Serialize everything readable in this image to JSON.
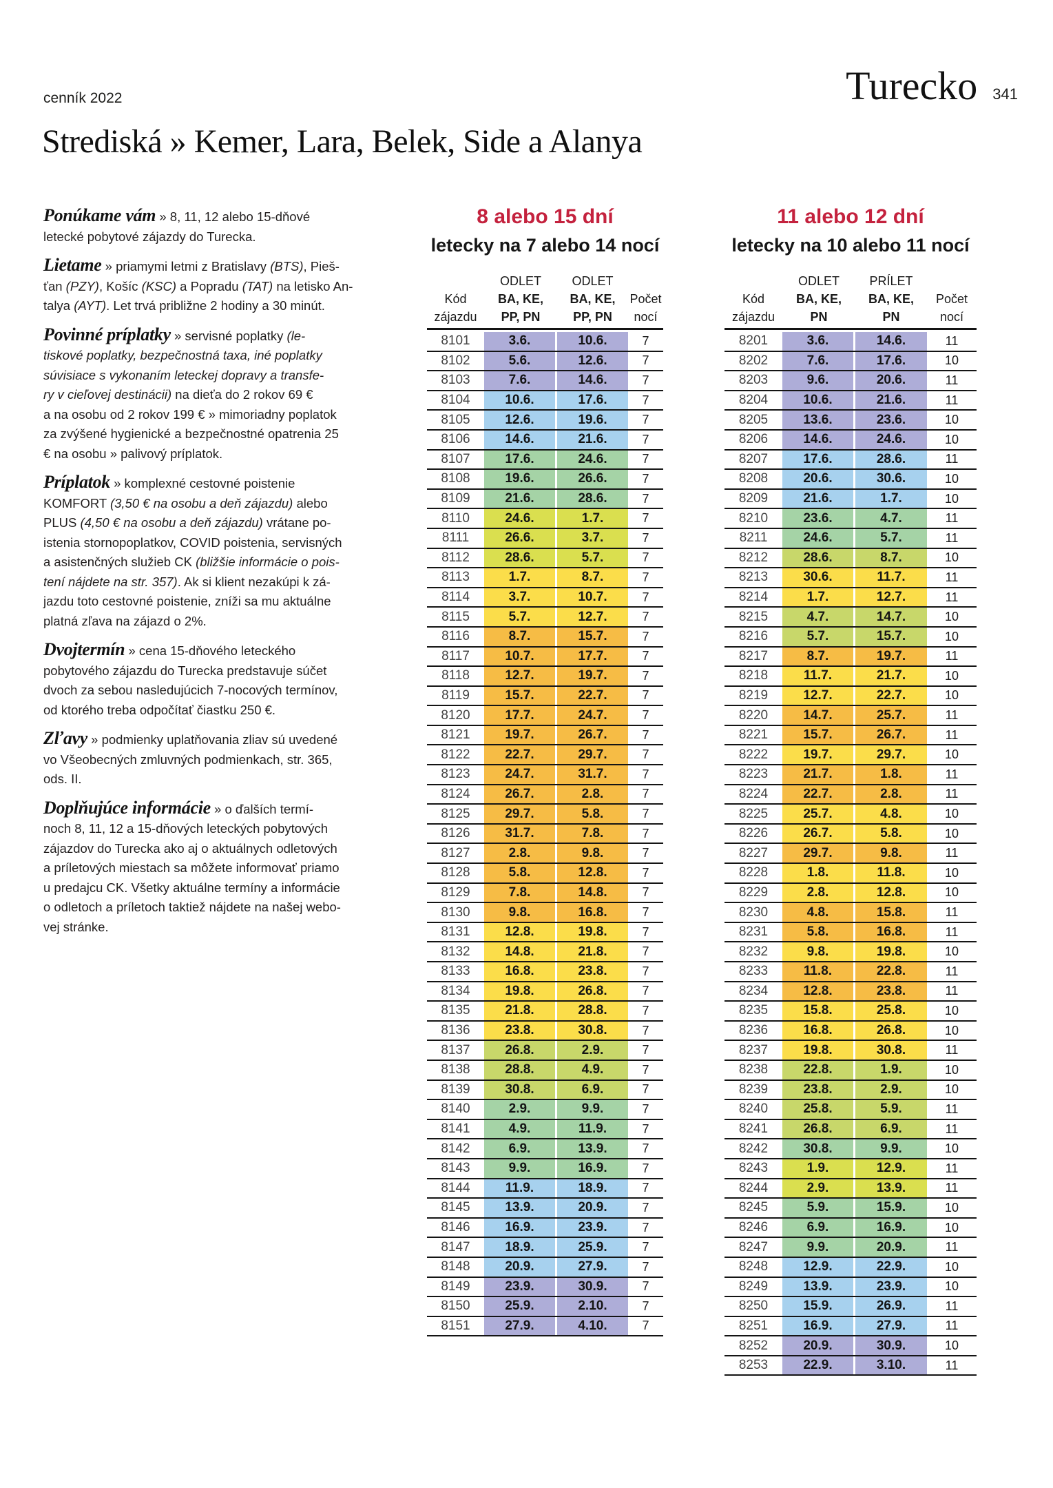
{
  "page": {
    "catalog_label": "cenník 2022",
    "country_title": "Turecko",
    "page_number": "341",
    "heading": "Strediská » Kemer, Lara, Belek, Side a Alanya"
  },
  "colors": {
    "accent_red": "#c4223e",
    "bands": {
      "purple": "#aeadd8",
      "blue": "#a7d1ee",
      "green": "#a5d3a6",
      "lime": "#dadf4f",
      "olive": "#c8d76a",
      "yellow": "#fbdd4a",
      "orange": "#f6bc45"
    }
  },
  "left_column": {
    "paragraphs": [
      {
        "lead": "Ponúkame vám",
        "segments": [
          {
            "text": " » 8, 11, 12 alebo 15-dňové\nletecké pobytové zájazdy do Turecka."
          }
        ]
      },
      {
        "lead": "Lietame",
        "segments": [
          {
            "text": " » priamymi letmi z Bratislavy "
          },
          {
            "text": "(BTS)",
            "italic": true
          },
          {
            "text": ", Pieš-\nťan "
          },
          {
            "text": "(PZY)",
            "italic": true
          },
          {
            "text": ", Košíc "
          },
          {
            "text": "(KSC)",
            "italic": true
          },
          {
            "text": " a Popradu "
          },
          {
            "text": "(TAT)",
            "italic": true
          },
          {
            "text": " na letisko An-\ntalya "
          },
          {
            "text": "(AYT)",
            "italic": true
          },
          {
            "text": ". Let trvá približne 2 hodiny a 30 minút."
          }
        ]
      },
      {
        "lead": "Povinné príplatky",
        "segments": [
          {
            "text": " » servisné poplatky "
          },
          {
            "text": "(le-\ntiskové poplatky, bezpečnostná taxa, iné poplatky\nsúvisiace s vykonaním leteckej dopravy a transfe-\nry v cieľovej destinácii)",
            "italic": true
          },
          {
            "text": " na dieťa do 2 rokov 69 €\na na osobu od 2 rokov 199 € » mimoriadny poplatok\nza zvýšené hygienické a bezpečnostné opatrenia 25\n€ na osobu » palivový príplatok."
          }
        ]
      },
      {
        "lead": "Príplatok",
        "segments": [
          {
            "text": " » komplexné cestovné poistenie\nKOMFORT "
          },
          {
            "text": "(3,50 € na osobu a deň zájazdu)",
            "italic": true
          },
          {
            "text": " alebo\nPLUS "
          },
          {
            "text": "(4,50 € na osobu a deň zájazdu)",
            "italic": true
          },
          {
            "text": " vrátane po-\nistenia stornopoplatkov, COVID poistenia, servisných\na asistenčných služieb CK "
          },
          {
            "text": "(bližšie informácie o pois-\ntení nájdete na str. 357)",
            "italic": true
          },
          {
            "text": ". Ak si klient nezakúpi k zá-\njazdu toto cestovné poistenie, zníži sa mu aktuálne\nplatná zľava na zájazd o 2%."
          }
        ]
      },
      {
        "lead": "Dvojtermín",
        "segments": [
          {
            "text": " » cena 15-dňového leteckého\npobytového zájazdu do Turecka predstavuje súčet\ndvoch za sebou nasledujúcich 7-nocových termínov,\nod ktorého treba odpočítať čiastku 250 €."
          }
        ]
      },
      {
        "lead": "Zľavy",
        "segments": [
          {
            "text": " » podmienky uplatňovania zliav sú uvedené\nvo Všeobecných zmluvných podmienkach, str. 365,\nods. II."
          }
        ]
      },
      {
        "lead": "Doplňujúce informácie",
        "segments": [
          {
            "text": " » o ďalších termí-\nnoch 8, 11, 12 a 15-dňových leteckých pobytových\nzájazdov do Turecka ako aj o aktuálnych odletových\na príletových miestach sa môžete informovať priamo\nu predajcu CK. Všetky aktuálne termíny a informácie\no odletoch a príletoch taktiež nájdete na našej webo-\nvej stránke."
          }
        ]
      }
    ]
  },
  "tables": [
    {
      "id": "t1",
      "title": "8 alebo 15 dní",
      "subtitle": "letecky na 7 alebo 14 nocí",
      "header_cols": [
        {
          "class": "code",
          "lines": [
            {
              "t": ""
            },
            {
              "t": "Kód"
            },
            {
              "t": "zájazdu"
            }
          ]
        },
        {
          "class": "d1",
          "lines": [
            {
              "t": "ODLET"
            },
            {
              "t": "BA, KE,",
              "b": 1
            },
            {
              "t": "PP, PN",
              "b": 1
            }
          ]
        },
        {
          "class": "d2",
          "lines": [
            {
              "t": "ODLET"
            },
            {
              "t": "BA, KE,",
              "b": 1
            },
            {
              "t": "PP, PN",
              "b": 1
            }
          ]
        },
        {
          "class": "nights",
          "lines": [
            {
              "t": ""
            },
            {
              "t": "Počet"
            },
            {
              "t": "nocí"
            }
          ]
        }
      ],
      "rows": [
        [
          "8101",
          "3.6.",
          "10.6.",
          "7",
          "purple"
        ],
        [
          "8102",
          "5.6.",
          "12.6.",
          "7",
          "purple"
        ],
        [
          "8103",
          "7.6.",
          "14.6.",
          "7",
          "purple"
        ],
        [
          "8104",
          "10.6.",
          "17.6.",
          "7",
          "blue"
        ],
        [
          "8105",
          "12.6.",
          "19.6.",
          "7",
          "blue"
        ],
        [
          "8106",
          "14.6.",
          "21.6.",
          "7",
          "blue"
        ],
        [
          "8107",
          "17.6.",
          "24.6.",
          "7",
          "green"
        ],
        [
          "8108",
          "19.6.",
          "26.6.",
          "7",
          "green"
        ],
        [
          "8109",
          "21.6.",
          "28.6.",
          "7",
          "green"
        ],
        [
          "8110",
          "24.6.",
          "1.7.",
          "7",
          "lime"
        ],
        [
          "8111",
          "26.6.",
          "3.7.",
          "7",
          "lime"
        ],
        [
          "8112",
          "28.6.",
          "5.7.",
          "7",
          "lime"
        ],
        [
          "8113",
          "1.7.",
          "8.7.",
          "7",
          "yellow"
        ],
        [
          "8114",
          "3.7.",
          "10.7.",
          "7",
          "yellow"
        ],
        [
          "8115",
          "5.7.",
          "12.7.",
          "7",
          "yellow"
        ],
        [
          "8116",
          "8.7.",
          "15.7.",
          "7",
          "orange"
        ],
        [
          "8117",
          "10.7.",
          "17.7.",
          "7",
          "orange"
        ],
        [
          "8118",
          "12.7.",
          "19.7.",
          "7",
          "orange"
        ],
        [
          "8119",
          "15.7.",
          "22.7.",
          "7",
          "orange"
        ],
        [
          "8120",
          "17.7.",
          "24.7.",
          "7",
          "orange"
        ],
        [
          "8121",
          "19.7.",
          "26.7.",
          "7",
          "orange"
        ],
        [
          "8122",
          "22.7.",
          "29.7.",
          "7",
          "orange"
        ],
        [
          "8123",
          "24.7.",
          "31.7.",
          "7",
          "orange"
        ],
        [
          "8124",
          "26.7.",
          "2.8.",
          "7",
          "orange"
        ],
        [
          "8125",
          "29.7.",
          "5.8.",
          "7",
          "orange"
        ],
        [
          "8126",
          "31.7.",
          "7.8.",
          "7",
          "orange"
        ],
        [
          "8127",
          "2.8.",
          "9.8.",
          "7",
          "orange"
        ],
        [
          "8128",
          "5.8.",
          "12.8.",
          "7",
          "orange"
        ],
        [
          "8129",
          "7.8.",
          "14.8.",
          "7",
          "orange"
        ],
        [
          "8130",
          "9.8.",
          "16.8.",
          "7",
          "orange"
        ],
        [
          "8131",
          "12.8.",
          "19.8.",
          "7",
          "yellow"
        ],
        [
          "8132",
          "14.8.",
          "21.8.",
          "7",
          "yellow"
        ],
        [
          "8133",
          "16.8.",
          "23.8.",
          "7",
          "yellow"
        ],
        [
          "8134",
          "19.8.",
          "26.8.",
          "7",
          "yellow"
        ],
        [
          "8135",
          "21.8.",
          "28.8.",
          "7",
          "yellow"
        ],
        [
          "8136",
          "23.8.",
          "30.8.",
          "7",
          "yellow"
        ],
        [
          "8137",
          "26.8.",
          "2.9.",
          "7",
          "olive"
        ],
        [
          "8138",
          "28.8.",
          "4.9.",
          "7",
          "olive"
        ],
        [
          "8139",
          "30.8.",
          "6.9.",
          "7",
          "olive"
        ],
        [
          "8140",
          "2.9.",
          "9.9.",
          "7",
          "green"
        ],
        [
          "8141",
          "4.9.",
          "11.9.",
          "7",
          "green"
        ],
        [
          "8142",
          "6.9.",
          "13.9.",
          "7",
          "green"
        ],
        [
          "8143",
          "9.9.",
          "16.9.",
          "7",
          "green"
        ],
        [
          "8144",
          "11.9.",
          "18.9.",
          "7",
          "blue"
        ],
        [
          "8145",
          "13.9.",
          "20.9.",
          "7",
          "blue"
        ],
        [
          "8146",
          "16.9.",
          "23.9.",
          "7",
          "blue"
        ],
        [
          "8147",
          "18.9.",
          "25.9.",
          "7",
          "blue"
        ],
        [
          "8148",
          "20.9.",
          "27.9.",
          "7",
          "blue"
        ],
        [
          "8149",
          "23.9.",
          "30.9.",
          "7",
          "purple"
        ],
        [
          "8150",
          "25.9.",
          "2.10.",
          "7",
          "purple"
        ],
        [
          "8151",
          "27.9.",
          "4.10.",
          "7",
          "purple"
        ]
      ]
    },
    {
      "id": "t2",
      "title": "11 alebo 12 dní",
      "subtitle": "letecky na 10 alebo 11 nocí",
      "header_cols": [
        {
          "class": "code",
          "lines": [
            {
              "t": ""
            },
            {
              "t": "Kód"
            },
            {
              "t": "zájazdu"
            }
          ]
        },
        {
          "class": "d1",
          "lines": [
            {
              "t": "ODLET"
            },
            {
              "t": "BA, KE,",
              "b": 1
            },
            {
              "t": "PN",
              "b": 1
            }
          ]
        },
        {
          "class": "d2",
          "lines": [
            {
              "t": "PRÍLET"
            },
            {
              "t": "BA, KE,",
              "b": 1
            },
            {
              "t": "PN",
              "b": 1
            }
          ]
        },
        {
          "class": "nights",
          "lines": [
            {
              "t": ""
            },
            {
              "t": "Počet"
            },
            {
              "t": "nocí"
            }
          ]
        }
      ],
      "rows": [
        [
          "8201",
          "3.6.",
          "14.6.",
          "11",
          "purple"
        ],
        [
          "8202",
          "7.6.",
          "17.6.",
          "10",
          "purple"
        ],
        [
          "8203",
          "9.6.",
          "20.6.",
          "11",
          "purple"
        ],
        [
          "8204",
          "10.6.",
          "21.6.",
          "11",
          "purple"
        ],
        [
          "8205",
          "13.6.",
          "23.6.",
          "10",
          "purple"
        ],
        [
          "8206",
          "14.6.",
          "24.6.",
          "10",
          "purple"
        ],
        [
          "8207",
          "17.6.",
          "28.6.",
          "11",
          "blue"
        ],
        [
          "8208",
          "20.6.",
          "30.6.",
          "10",
          "blue"
        ],
        [
          "8209",
          "21.6.",
          "1.7.",
          "10",
          "blue"
        ],
        [
          "8210",
          "23.6.",
          "4.7.",
          "11",
          "green"
        ],
        [
          "8211",
          "24.6.",
          "5.7.",
          "11",
          "green"
        ],
        [
          "8212",
          "28.6.",
          "8.7.",
          "10",
          "olive"
        ],
        [
          "8213",
          "30.6.",
          "11.7.",
          "11",
          "yellow"
        ],
        [
          "8214",
          "1.7.",
          "12.7.",
          "11",
          "yellow"
        ],
        [
          "8215",
          "4.7.",
          "14.7.",
          "10",
          "olive"
        ],
        [
          "8216",
          "5.7.",
          "15.7.",
          "10",
          "olive"
        ],
        [
          "8217",
          "8.7.",
          "19.7.",
          "11",
          "orange"
        ],
        [
          "8218",
          "11.7.",
          "21.7.",
          "10",
          "yellow"
        ],
        [
          "8219",
          "12.7.",
          "22.7.",
          "10",
          "yellow"
        ],
        [
          "8220",
          "14.7.",
          "25.7.",
          "11",
          "orange"
        ],
        [
          "8221",
          "15.7.",
          "26.7.",
          "11",
          "orange"
        ],
        [
          "8222",
          "19.7.",
          "29.7.",
          "10",
          "yellow"
        ],
        [
          "8223",
          "21.7.",
          "1.8.",
          "11",
          "orange"
        ],
        [
          "8224",
          "22.7.",
          "2.8.",
          "11",
          "orange"
        ],
        [
          "8225",
          "25.7.",
          "4.8.",
          "10",
          "yellow"
        ],
        [
          "8226",
          "26.7.",
          "5.8.",
          "10",
          "yellow"
        ],
        [
          "8227",
          "29.7.",
          "9.8.",
          "11",
          "orange"
        ],
        [
          "8228",
          "1.8.",
          "11.8.",
          "10",
          "yellow"
        ],
        [
          "8229",
          "2.8.",
          "12.8.",
          "10",
          "yellow"
        ],
        [
          "8230",
          "4.8.",
          "15.8.",
          "11",
          "orange"
        ],
        [
          "8231",
          "5.8.",
          "16.8.",
          "11",
          "orange"
        ],
        [
          "8232",
          "9.8.",
          "19.8.",
          "10",
          "yellow"
        ],
        [
          "8233",
          "11.8.",
          "22.8.",
          "11",
          "orange"
        ],
        [
          "8234",
          "12.8.",
          "23.8.",
          "11",
          "orange"
        ],
        [
          "8235",
          "15.8.",
          "25.8.",
          "10",
          "yellow"
        ],
        [
          "8236",
          "16.8.",
          "26.8.",
          "10",
          "yellow"
        ],
        [
          "8237",
          "19.8.",
          "30.8.",
          "11",
          "yellow"
        ],
        [
          "8238",
          "22.8.",
          "1.9.",
          "10",
          "olive"
        ],
        [
          "8239",
          "23.8.",
          "2.9.",
          "10",
          "olive"
        ],
        [
          "8240",
          "25.8.",
          "5.9.",
          "11",
          "olive"
        ],
        [
          "8241",
          "26.8.",
          "6.9.",
          "11",
          "olive"
        ],
        [
          "8242",
          "30.8.",
          "9.9.",
          "10",
          "green"
        ],
        [
          "8243",
          "1.9.",
          "12.9.",
          "11",
          "lime"
        ],
        [
          "8244",
          "2.9.",
          "13.9.",
          "11",
          "lime"
        ],
        [
          "8245",
          "5.9.",
          "15.9.",
          "10",
          "green"
        ],
        [
          "8246",
          "6.9.",
          "16.9.",
          "10",
          "green"
        ],
        [
          "8247",
          "9.9.",
          "20.9.",
          "11",
          "green"
        ],
        [
          "8248",
          "12.9.",
          "22.9.",
          "10",
          "blue"
        ],
        [
          "8249",
          "13.9.",
          "23.9.",
          "10",
          "blue"
        ],
        [
          "8250",
          "15.9.",
          "26.9.",
          "11",
          "blue"
        ],
        [
          "8251",
          "16.9.",
          "27.9.",
          "11",
          "blue"
        ],
        [
          "8252",
          "20.9.",
          "30.9.",
          "10",
          "purple"
        ],
        [
          "8253",
          "22.9.",
          "3.10.",
          "11",
          "purple"
        ]
      ]
    }
  ]
}
